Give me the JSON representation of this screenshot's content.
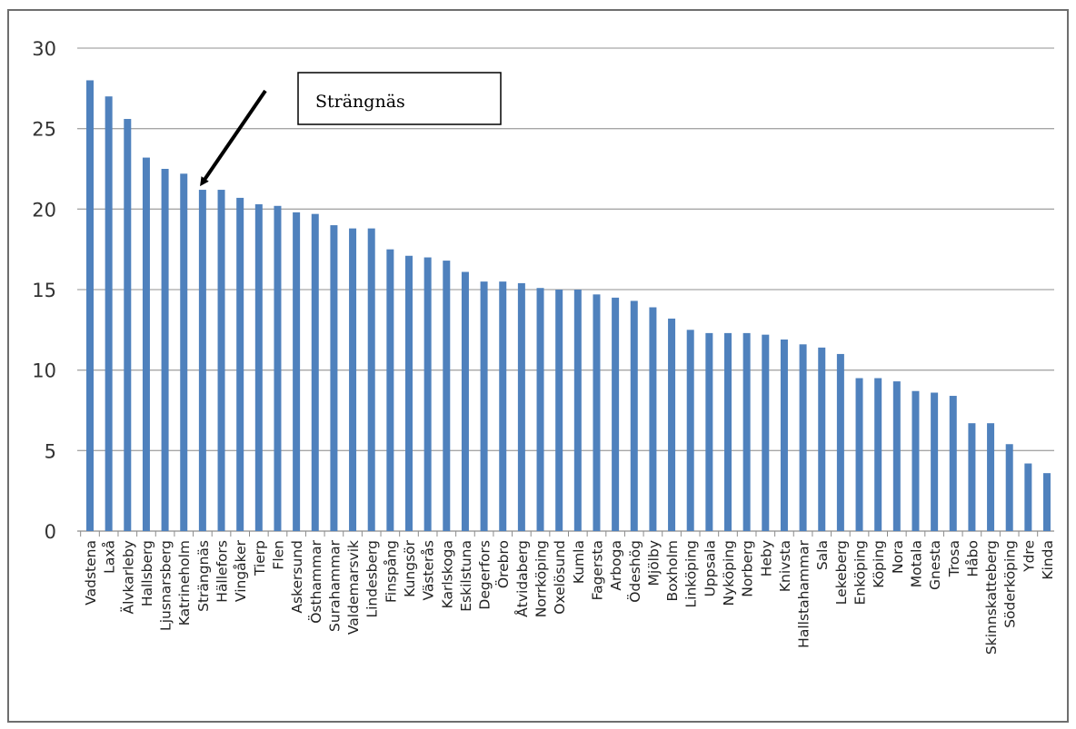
{
  "chart_data": {
    "type": "bar",
    "title": "",
    "xlabel": "",
    "ylabel": "",
    "ylim": [
      0,
      30
    ],
    "yticks": [
      0,
      5,
      10,
      15,
      20,
      25,
      30
    ],
    "grid": true,
    "bar_color": "#4f81bd",
    "categories": [
      "Vadstena",
      "Laxå",
      "Älvkarleby",
      "Hallsberg",
      "Ljusnarsberg",
      "Katrineholm",
      "Strängnäs",
      "Hällefors",
      "Vingåker",
      "Tierp",
      "Flen",
      "Askersund",
      "Östhammar",
      "Surahammar",
      "Valdemarsvik",
      "Lindesberg",
      "Finspång",
      "Kungsör",
      "Västerås",
      "Karlskoga",
      "Eskilstuna",
      "Degerfors",
      "Örebro",
      "Åtvidaberg",
      "Norrköping",
      "Oxelösund",
      "Kumla",
      "Fagersta",
      "Arboga",
      "Ödeshög",
      "Mjölby",
      "Boxholm",
      "Linköping",
      "Uppsala",
      "Nyköping",
      "Norberg",
      "Heby",
      "Knivsta",
      "Hallstahammar",
      "Sala",
      "Lekeberg",
      "Enköping",
      "Köping",
      "Nora",
      "Motala",
      "Gnesta",
      "Trosa",
      "Håbo",
      "Skinnskatteberg",
      "Söderköping",
      "Ydre",
      "Kinda"
    ],
    "values": [
      28.0,
      27.0,
      25.6,
      23.2,
      22.5,
      22.2,
      21.2,
      21.2,
      20.7,
      20.3,
      20.2,
      19.8,
      19.7,
      19.0,
      18.8,
      18.8,
      17.5,
      17.1,
      17.0,
      16.8,
      16.1,
      15.5,
      15.5,
      15.4,
      15.1,
      15.0,
      15.0,
      14.7,
      14.5,
      14.3,
      13.9,
      13.2,
      12.5,
      12.3,
      12.3,
      12.3,
      12.2,
      11.9,
      11.6,
      11.4,
      11.0,
      9.5,
      9.5,
      9.3,
      8.7,
      8.6,
      8.4,
      6.7,
      6.7,
      5.4,
      4.2,
      3.6
    ],
    "annotation": {
      "label": "Strängnäs",
      "target_category": "Strängnäs"
    }
  }
}
